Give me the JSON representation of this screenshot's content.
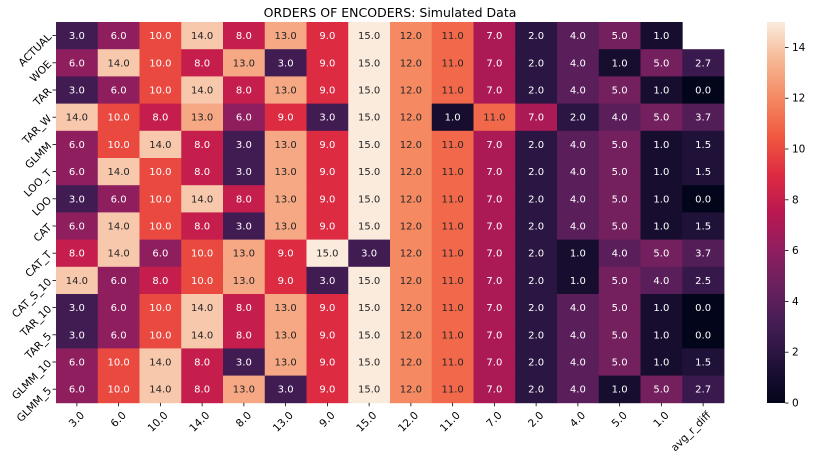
{
  "chart_data": {
    "type": "heatmap",
    "title": "ORDERS OF ENCODERS: Simulated Data",
    "rows": [
      "ACTUAL",
      "WOE",
      "TAR",
      "TAR_W",
      "GLMM",
      "LOO_T",
      "LOO",
      "CAT",
      "CAT_T",
      "CAT_S_10",
      "TAR_10",
      "TAR_5",
      "GLMM_10",
      "GLMM_5"
    ],
    "columns": [
      "3.0",
      "6.0",
      "10.0",
      "14.0",
      "8.0",
      "13.0",
      "9.0",
      "15.0",
      "12.0",
      "11.0",
      "7.0",
      "2.0",
      "4.0",
      "5.0",
      "1.0",
      "avg_r_diff"
    ],
    "values": [
      [
        3.0,
        6.0,
        10.0,
        14.0,
        8.0,
        13.0,
        9.0,
        15.0,
        12.0,
        11.0,
        7.0,
        2.0,
        4.0,
        5.0,
        1.0,
        null
      ],
      [
        6.0,
        14.0,
        10.0,
        8.0,
        13.0,
        3.0,
        9.0,
        15.0,
        12.0,
        11.0,
        7.0,
        2.0,
        4.0,
        1.0,
        5.0,
        2.7
      ],
      [
        3.0,
        6.0,
        10.0,
        14.0,
        8.0,
        13.0,
        9.0,
        15.0,
        12.0,
        11.0,
        7.0,
        2.0,
        4.0,
        5.0,
        1.0,
        0.0
      ],
      [
        14.0,
        10.0,
        8.0,
        13.0,
        6.0,
        9.0,
        3.0,
        15.0,
        12.0,
        1.0,
        11.0,
        7.0,
        2.0,
        4.0,
        5.0,
        3.7
      ],
      [
        6.0,
        10.0,
        14.0,
        8.0,
        3.0,
        13.0,
        9.0,
        15.0,
        12.0,
        11.0,
        7.0,
        2.0,
        4.0,
        5.0,
        1.0,
        1.5
      ],
      [
        6.0,
        14.0,
        10.0,
        8.0,
        3.0,
        13.0,
        9.0,
        15.0,
        12.0,
        11.0,
        7.0,
        2.0,
        4.0,
        5.0,
        1.0,
        1.5
      ],
      [
        3.0,
        6.0,
        10.0,
        14.0,
        8.0,
        13.0,
        9.0,
        15.0,
        12.0,
        11.0,
        7.0,
        2.0,
        4.0,
        5.0,
        1.0,
        0.0
      ],
      [
        6.0,
        14.0,
        10.0,
        8.0,
        3.0,
        13.0,
        9.0,
        15.0,
        12.0,
        11.0,
        7.0,
        2.0,
        4.0,
        5.0,
        1.0,
        1.5
      ],
      [
        8.0,
        14.0,
        6.0,
        10.0,
        13.0,
        9.0,
        15.0,
        3.0,
        12.0,
        11.0,
        7.0,
        2.0,
        1.0,
        4.0,
        5.0,
        3.7
      ],
      [
        14.0,
        6.0,
        8.0,
        10.0,
        13.0,
        9.0,
        3.0,
        15.0,
        12.0,
        11.0,
        7.0,
        2.0,
        1.0,
        5.0,
        4.0,
        2.5
      ],
      [
        3.0,
        6.0,
        10.0,
        14.0,
        8.0,
        13.0,
        9.0,
        15.0,
        12.0,
        11.0,
        7.0,
        2.0,
        4.0,
        5.0,
        1.0,
        0.0
      ],
      [
        3.0,
        6.0,
        10.0,
        14.0,
        8.0,
        13.0,
        9.0,
        15.0,
        12.0,
        11.0,
        7.0,
        2.0,
        4.0,
        5.0,
        1.0,
        0.0
      ],
      [
        6.0,
        10.0,
        14.0,
        8.0,
        3.0,
        13.0,
        9.0,
        15.0,
        12.0,
        11.0,
        7.0,
        2.0,
        4.0,
        5.0,
        1.0,
        1.5
      ],
      [
        6.0,
        10.0,
        14.0,
        8.0,
        13.0,
        3.0,
        9.0,
        15.0,
        12.0,
        11.0,
        7.0,
        2.0,
        4.0,
        1.0,
        5.0,
        2.7
      ]
    ],
    "colormap": "rocket",
    "vmin": 0,
    "vmax": 15,
    "colorbar_ticks": [
      0,
      2,
      4,
      6,
      8,
      10,
      12,
      14
    ],
    "annotations": true,
    "legend": "colorbar-right"
  }
}
